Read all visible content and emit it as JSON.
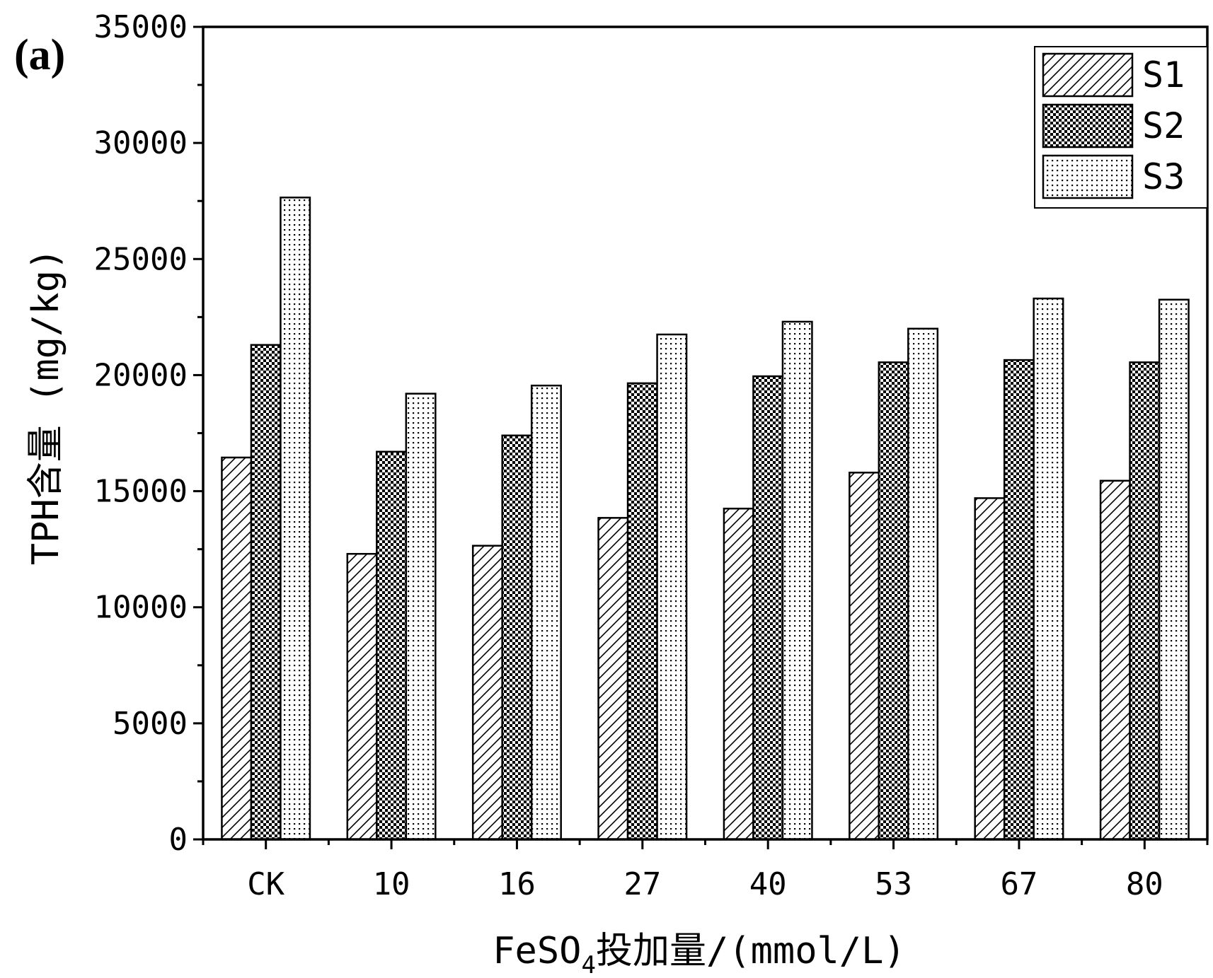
{
  "panel_label": "(a)",
  "chart_data": {
    "type": "bar",
    "xlabel": "FeSO",
    "xlabel_subscript": "4",
    "xlabel_suffix": "投加量/(mmol/L)",
    "ylabel": "TPH含量 (mg/kg)",
    "categories": [
      "CK",
      "10",
      "16",
      "27",
      "40",
      "53",
      "67",
      "80"
    ],
    "ylim": [
      0,
      35000
    ],
    "yticks": [
      "0",
      "5000",
      "10000",
      "15000",
      "20000",
      "25000",
      "30000",
      "35000"
    ],
    "grid": false,
    "legend_position": "top-right",
    "series": [
      {
        "name": "S1",
        "pattern": "diagonal-hatch",
        "values": [
          16450,
          12300,
          12650,
          13850,
          14250,
          15800,
          14700,
          15450
        ]
      },
      {
        "name": "S2",
        "pattern": "checkerboard",
        "values": [
          21300,
          16700,
          17400,
          19650,
          19950,
          20550,
          20650,
          20550
        ]
      },
      {
        "name": "S3",
        "pattern": "fine-dots",
        "values": [
          27650,
          19200,
          19550,
          21750,
          22300,
          22000,
          23300,
          23250
        ]
      }
    ],
    "colors": {
      "ink": "#000000",
      "background": "#ffffff"
    }
  }
}
